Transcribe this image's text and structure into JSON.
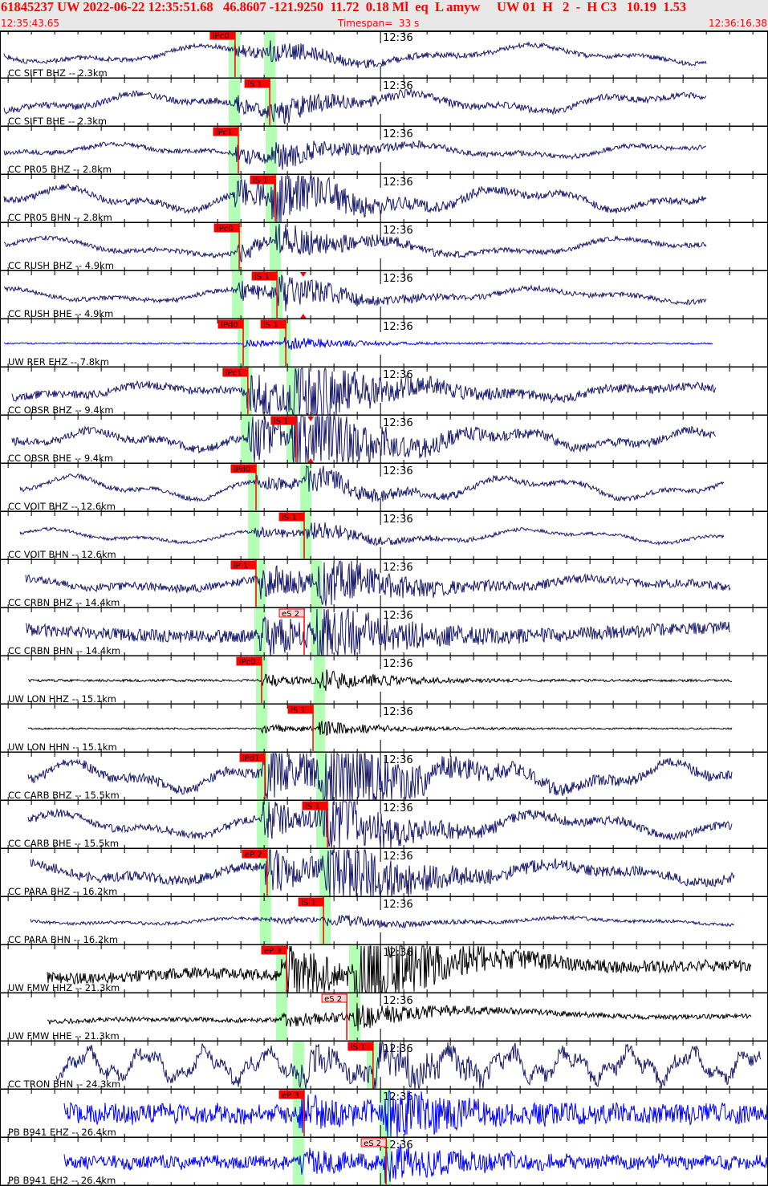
{
  "header": {
    "event_line": "61845237 UW 2022-06-22 12:35:51.68   46.8607 -121.9250  11.72  0.18 Ml  eq  L amyw     UW 01  H   2  -  H C3   10.19  1.53",
    "start_time": "12:35:43.65",
    "timespan_label": "Timespan=  33 s",
    "end_time": "12:36:16.38"
  },
  "colors": {
    "pick": "#ff0000",
    "pick_weak_bg": "#ffd0d0",
    "window": "#b3ffb3",
    "header_text": "#ff0000"
  },
  "minute_label": "12:36",
  "traces": [
    {
      "label": "CC SIFT BHZ -- 2.3km",
      "color": "#1a1a6e",
      "p_window": "12:35:53.72",
      "s_window": "12:35:55.24",
      "picks": [
        {
          "label": "iPc0",
          "time": "12:35:53.75"
        }
      ]
    },
    {
      "label": "CC SIFT BHE -- 2.3km",
      "color": "#1a1a6e",
      "p_window": "12:35:53.72",
      "s_window": "12:35:55.27",
      "picks": [
        {
          "label": "iS 1",
          "time": "12:35:55.24"
        }
      ]
    },
    {
      "label": "CC PR05 BHZ -- 2.8km",
      "color": "#1a1a6e",
      "p_window": "12:35:53.72",
      "s_window": "12:35:55.31",
      "picks": [
        {
          "label": "iPc1",
          "time": "12:35:53.89"
        }
      ]
    },
    {
      "label": "CC PR05 BHN -- 2.8km",
      "color": "#1a1a6e",
      "p_window": "12:35:53.72",
      "s_window": "12:35:55.31",
      "picks": [
        {
          "label": "iS 1",
          "time": "12:35:55.48"
        }
      ]
    },
    {
      "label": "CC RUSH BHZ -- 4.9km",
      "color": "#1a1a6e",
      "p_window": "12:35:53.79",
      "s_window": "12:35:55.48",
      "picks": [
        {
          "label": "iPc0",
          "time": "12:35:53.93"
        }
      ]
    },
    {
      "label": "CC RUSH BHE -- 4.9km",
      "color": "#1a1a6e",
      "p_window": "12:35:53.86",
      "s_window": "12:35:55.55",
      "picks": [
        {
          "label": "iS 1",
          "time": "12:35:55.55"
        }
      ],
      "amp_marker": "12:35:56.68"
    },
    {
      "label": "UW RER EHZ -- 7.8km",
      "color": "#0000ff",
      "p_window": "12:35:54.10",
      "s_window": "12:35:55.89",
      "picks": [
        {
          "label": "iPd0",
          "time": "12:35:54.10"
        },
        {
          "label": "iS 1",
          "time": "12:35:55.93"
        }
      ]
    },
    {
      "label": "CC OBSR BHZ -- 9.4km",
      "color": "#1a1a6e",
      "p_window": "12:35:54.24",
      "s_window": "12:35:56.20",
      "picks": [
        {
          "label": "iPc1",
          "time": "12:35:54.30"
        }
      ]
    },
    {
      "label": "CC OBSR BHE -- 9.4km",
      "color": "#1a1a6e",
      "p_window": "12:35:54.24",
      "s_window": "12:35:56.20",
      "picks": [
        {
          "label": "iS 1",
          "time": "12:35:56.37"
        }
      ],
      "amp_marker": "12:35:57.00"
    },
    {
      "label": "CC VOIT BHZ -- 12.6km",
      "color": "#1a1a6e",
      "p_window": "12:35:54.55",
      "s_window": "12:35:56.79",
      "picks": [
        {
          "label": "iPd0",
          "time": "12:35:54.65"
        }
      ]
    },
    {
      "label": "CC VOIT BHN -- 12.6km",
      "color": "#1a1a6e",
      "p_window": "12:35:54.55",
      "s_window": "12:35:56.79",
      "picks": [
        {
          "label": "iS 1",
          "time": "12:35:56.72"
        }
      ]
    },
    {
      "label": "CC CRBN BHZ -- 14.4km",
      "color": "#1a1a6e",
      "p_window": "12:35:54.82",
      "s_window": "12:35:57.24",
      "picks": [
        {
          "label": "iP 1",
          "time": "12:35:54.65"
        }
      ]
    },
    {
      "label": "CC CRBN BHN -- 14.4km",
      "color": "#1a1a6e",
      "p_window": "12:35:54.82",
      "s_window": "12:35:57.24",
      "picks": [
        {
          "label": "eS 2",
          "time": "12:35:56.72",
          "weak": true
        }
      ]
    },
    {
      "label": "UW LON HHZ -- 15.1km",
      "color": "#000000",
      "p_window": "12:35:54.89",
      "s_window": "12:35:57.37",
      "picks": [
        {
          "label": "iPc0",
          "time": "12:35:54.89"
        }
      ]
    },
    {
      "label": "UW LON HHN -- 15.1km",
      "color": "#000000",
      "p_window": "12:35:54.89",
      "s_window": "12:35:57.37",
      "picks": [
        {
          "label": "iS 1",
          "time": "12:35:57.10"
        }
      ]
    },
    {
      "label": "CC CARB BHZ -- 15.5km",
      "color": "#1a1a6e",
      "p_window": "12:35:54.93",
      "s_window": "12:35:57.48",
      "picks": [
        {
          "label": "iPd1",
          "time": "12:35:55.03"
        }
      ]
    },
    {
      "label": "CC CARB BHE -- 15.5km",
      "color": "#1a1a6e",
      "p_window": "12:35:54.93",
      "s_window": "12:35:57.48",
      "picks": [
        {
          "label": "iS 1",
          "time": "12:35:57.72"
        }
      ]
    },
    {
      "label": "CC PARA BHZ -- 16.2km",
      "color": "#1a1a6e",
      "p_window": "12:35:55.06",
      "s_window": "12:35:57.62",
      "picks": [
        {
          "label": "eP 2",
          "time": "12:35:55.13"
        }
      ]
    },
    {
      "label": "CC PARA BHN -- 16.2km",
      "color": "#1a1a6e",
      "p_window": "12:35:55.06",
      "s_window": "12:35:57.62",
      "picks": [
        {
          "label": "iS 1",
          "time": "12:35:57.55"
        }
      ]
    },
    {
      "label": "UW FMW HHZ -- 21.3km",
      "color": "#000000",
      "p_window": "12:35:55.75",
      "s_window": "12:35:58.89",
      "picks": [
        {
          "label": "eP 3",
          "time": "12:35:55.96"
        }
      ]
    },
    {
      "label": "UW FMW HHE -- 21.3km",
      "color": "#000000",
      "p_window": "12:35:55.75",
      "s_window": "12:35:58.89",
      "picks": [
        {
          "label": "eS 2",
          "time": "12:35:58.55",
          "weak": true
        }
      ]
    },
    {
      "label": "CC TRON BHN -- 24.3km",
      "color": "#1a1a6e",
      "p_window": "12:35:56.48",
      "s_window": "12:35:59.65",
      "picks": [
        {
          "label": "iS 1",
          "time": "12:35:59.68"
        }
      ]
    },
    {
      "label": "PB B941 EHZ -- 26.4km",
      "color": "#0000ff",
      "p_window": "12:35:56.48",
      "s_window": "12:36:00.20",
      "picks": [
        {
          "label": "eP 3",
          "time": "12:35:56.72"
        }
      ]
    },
    {
      "label": "PB B941 EH2 -- 26.4km",
      "color": "#0000ff",
      "p_window": "12:35:56.48",
      "s_window": "12:36:00.20",
      "picks": [
        {
          "label": "eS 2",
          "time": "12:36:00.24",
          "weak": true
        }
      ]
    }
  ]
}
